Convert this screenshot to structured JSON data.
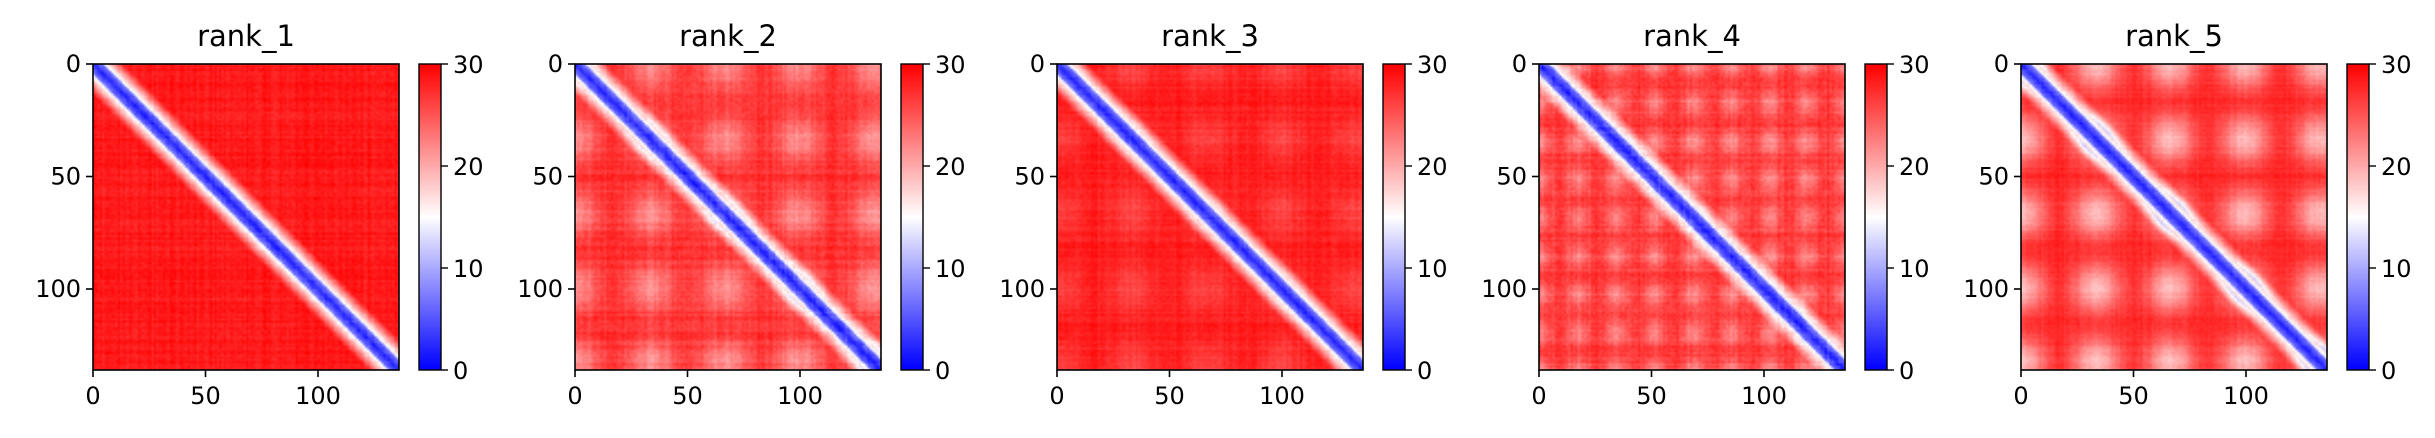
{
  "chart_data": [
    {
      "type": "heatmap",
      "title": "rank_1",
      "xlabel": "",
      "ylabel": "",
      "x_ticks": [
        0,
        50,
        100
      ],
      "y_ticks": [
        0,
        50,
        100
      ],
      "xlim": [
        0,
        136
      ],
      "ylim": [
        136,
        0
      ],
      "matrix_size": 136,
      "colorbar": {
        "ticks": [
          0,
          10,
          20,
          30
        ],
        "range": [
          0,
          30
        ],
        "colormap": "bwr"
      },
      "pattern": {
        "diagonal_band_value": 2,
        "band_width": 4.5,
        "background_value": 28.5,
        "checker_spots": 0,
        "spot_period": 0,
        "noise": 1.2
      }
    },
    {
      "type": "heatmap",
      "title": "rank_2",
      "xlabel": "",
      "ylabel": "",
      "x_ticks": [
        0,
        50,
        100
      ],
      "y_ticks": [
        0,
        50,
        100
      ],
      "xlim": [
        0,
        136
      ],
      "ylim": [
        136,
        0
      ],
      "matrix_size": 136,
      "colorbar": {
        "ticks": [
          0,
          10,
          20,
          30
        ],
        "range": [
          0,
          30
        ],
        "colormap": "bwr"
      },
      "pattern": {
        "diagonal_band_value": 2,
        "band_width": 4.5,
        "background_value": 27.5,
        "checker_spots": 6,
        "spot_period": 33,
        "noise": 1.4
      }
    },
    {
      "type": "heatmap",
      "title": "rank_3",
      "xlabel": "",
      "ylabel": "",
      "x_ticks": [
        0,
        50,
        100
      ],
      "y_ticks": [
        0,
        50,
        100
      ],
      "xlim": [
        0,
        136
      ],
      "ylim": [
        136,
        0
      ],
      "matrix_size": 136,
      "colorbar": {
        "ticks": [
          0,
          10,
          20,
          30
        ],
        "range": [
          0,
          30
        ],
        "colormap": "bwr"
      },
      "pattern": {
        "diagonal_band_value": 2,
        "band_width": 4.5,
        "background_value": 28.5,
        "checker_spots": 2.5,
        "spot_period": 33,
        "noise": 1.1
      }
    },
    {
      "type": "heatmap",
      "title": "rank_4",
      "xlabel": "",
      "ylabel": "",
      "x_ticks": [
        0,
        50,
        100
      ],
      "y_ticks": [
        0,
        50,
        100
      ],
      "xlim": [
        0,
        136
      ],
      "ylim": [
        136,
        0
      ],
      "matrix_size": 136,
      "colorbar": {
        "ticks": [
          0,
          10,
          20,
          30
        ],
        "range": [
          0,
          30
        ],
        "colormap": "bwr"
      },
      "pattern": {
        "diagonal_band_value": 2,
        "band_width": 4.5,
        "background_value": 27,
        "checker_spots": 5,
        "spot_period": 17,
        "noise": 1.6
      }
    },
    {
      "type": "heatmap",
      "title": "rank_5",
      "xlabel": "",
      "ylabel": "",
      "x_ticks": [
        0,
        50,
        100
      ],
      "y_ticks": [
        0,
        50,
        100
      ],
      "xlim": [
        0,
        136
      ],
      "ylim": [
        136,
        0
      ],
      "matrix_size": 136,
      "colorbar": {
        "ticks": [
          0,
          10,
          20,
          30
        ],
        "range": [
          0,
          30
        ],
        "colormap": "bwr"
      },
      "pattern": {
        "diagonal_band_value": 2,
        "band_width": 4.5,
        "background_value": 28,
        "checker_spots": 9,
        "spot_period": 33,
        "noise": 1.0
      }
    }
  ],
  "colors": {
    "low": "#0000ff",
    "mid": "#ffffff",
    "high": "#ff0000",
    "axis": "#000000"
  }
}
